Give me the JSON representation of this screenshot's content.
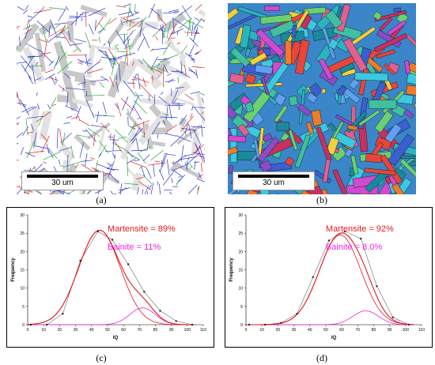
{
  "figure": {
    "panel_labels": [
      "(a)",
      "(b)",
      "(c)",
      "(d)"
    ],
    "scale_bar_a": "30 um",
    "scale_bar_b": "30 um",
    "colors": {
      "martensite": "#e6191e",
      "bainite": "#ee22dd",
      "measured": "#666666",
      "iq_map_bg": "#d8d8d8",
      "boundary_blue": "#2a33cc",
      "boundary_red": "#dd2222",
      "boundary_green": "#22aa33"
    }
  },
  "chart_data": [
    {
      "type": "line",
      "panel": "(c)",
      "xlabel": "IQ",
      "ylabel": "Frequency",
      "xlim": [
        0,
        110
      ],
      "ylim": [
        0,
        30
      ],
      "xticks": [
        0,
        10,
        20,
        30,
        40,
        50,
        60,
        70,
        80,
        90,
        100,
        110
      ],
      "yticks": [
        0,
        5,
        10,
        15,
        20,
        25,
        30
      ],
      "annotations": [
        "Martensite = 89%",
        "Bainite = 11%"
      ],
      "series": [
        {
          "role": "measured",
          "x": [
            2,
            12,
            22,
            33,
            44,
            53,
            63,
            73,
            83,
            93,
            103
          ],
          "y": [
            0,
            0,
            3,
            17.5,
            25.5,
            23.2,
            16.5,
            9,
            3.8,
            1,
            0
          ]
        },
        {
          "role": "martensite",
          "peak_x": 45,
          "peak_y": 25.8,
          "width": 13
        },
        {
          "role": "bainite",
          "peak_x": 72,
          "peak_y": 4.6,
          "width": 8
        }
      ]
    },
    {
      "type": "line",
      "panel": "(d)",
      "xlabel": "IQ",
      "ylabel": "Frequency",
      "xlim": [
        0,
        110
      ],
      "ylim": [
        0,
        30
      ],
      "xticks": [
        0,
        10,
        20,
        30,
        40,
        50,
        60,
        70,
        80,
        90,
        100,
        110
      ],
      "yticks": [
        0,
        5,
        10,
        15,
        20,
        25,
        30
      ],
      "annotations": [
        "Martensite = 92%",
        "Bainite = 8.0%"
      ],
      "series": [
        {
          "role": "measured",
          "x": [
            2,
            12,
            22,
            32,
            42,
            52,
            62,
            72,
            82,
            92,
            102
          ],
          "y": [
            0,
            0,
            0.5,
            3,
            13,
            23,
            25.5,
            23.5,
            10.5,
            2,
            0
          ]
        },
        {
          "role": "martensite",
          "peak_x": 59,
          "peak_y": 24.5,
          "width": 13
        },
        {
          "role": "bainite",
          "peak_x": 75,
          "peak_y": 3.8,
          "width": 8
        }
      ]
    }
  ]
}
